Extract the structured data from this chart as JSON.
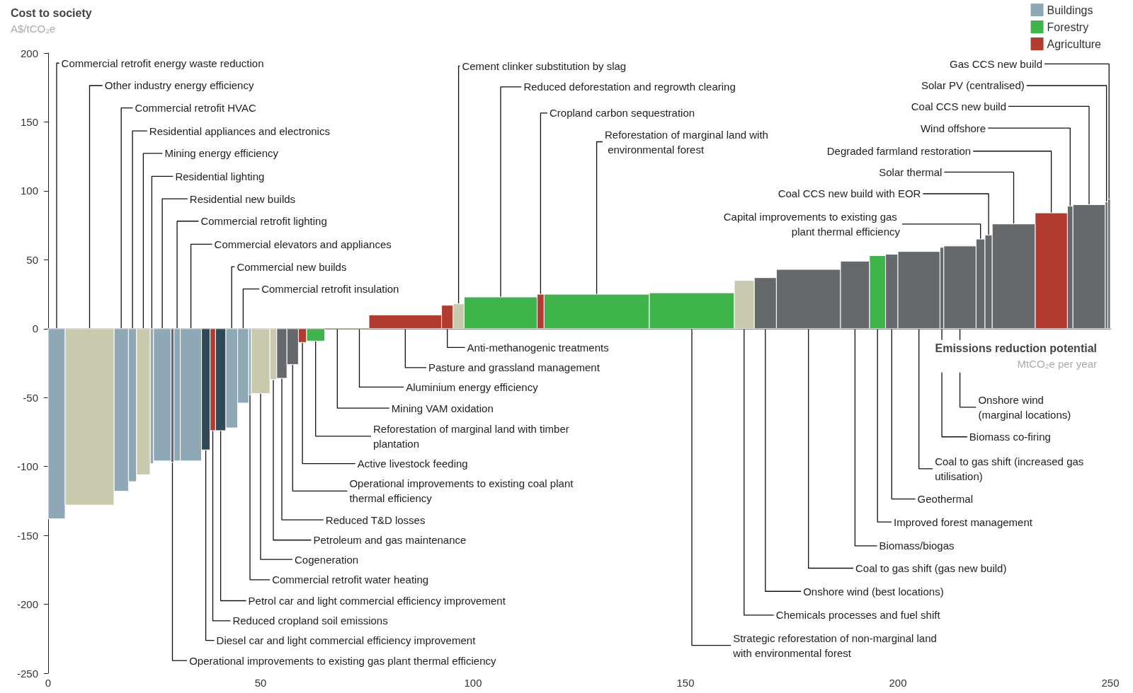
{
  "chart_data": {
    "type": "histogram",
    "ylabel": "Cost to society\nA$/tCO₂e",
    "xlabel": "Emissions reduction potential\nMtCO₂e per year",
    "bins": [
      0,
      4,
      15.5,
      18.9,
      20.8,
      24,
      24.8,
      28.9,
      29.6,
      31.1,
      36.1,
      38.1,
      39.4,
      41.8,
      44.6,
      47.2,
      47.8,
      52.2,
      53.8,
      56.2,
      58.9,
      60.8,
      65.1,
      71,
      75.5,
      92.6,
      95.3,
      97.9,
      115.1,
      116.7,
      141.5,
      161.5,
      166.2,
      171.4,
      186.5,
      193.3,
      197.1,
      200,
      209.9,
      210.8,
      218.4,
      220.5,
      222.2,
      232.3,
      239.9,
      241.2,
      248.8,
      249.4,
      250
    ],
    "series": [
      {
        "name": "Buildings",
        "color": "#8fa8b6",
        "values": [
          -138,
          null,
          -118,
          -111,
          null,
          -98,
          -96,
          null,
          -96,
          -96,
          null,
          null,
          null,
          -72,
          -54,
          -48,
          null,
          null,
          null,
          null,
          null,
          null,
          null,
          null,
          null,
          null,
          null,
          null,
          null,
          null,
          null,
          null,
          null,
          null,
          null,
          null,
          null,
          null,
          null,
          null,
          null,
          null,
          null,
          null,
          null,
          null,
          null,
          null
        ]
      },
      {
        "name": "Forestry",
        "color": "#3db54a",
        "values": [
          null,
          null,
          null,
          null,
          null,
          null,
          null,
          null,
          null,
          null,
          null,
          null,
          null,
          null,
          null,
          null,
          null,
          null,
          null,
          null,
          null,
          -9,
          null,
          null,
          null,
          null,
          null,
          23,
          null,
          25,
          26,
          null,
          null,
          null,
          null,
          53,
          null,
          null,
          null,
          null,
          null,
          null,
          null,
          null,
          null,
          null,
          null,
          null
        ]
      },
      {
        "name": "Agriculture",
        "color": "#b23b2f",
        "values": [
          null,
          null,
          null,
          null,
          null,
          null,
          null,
          null,
          null,
          null,
          null,
          -74,
          null,
          null,
          null,
          null,
          null,
          null,
          null,
          null,
          -10,
          null,
          null,
          null,
          10,
          17,
          null,
          null,
          25,
          null,
          null,
          null,
          null,
          null,
          null,
          null,
          null,
          null,
          null,
          null,
          null,
          null,
          null,
          84,
          null,
          null,
          null,
          null
        ]
      },
      {
        "color": "#c9c9ad",
        "values": [
          null,
          -128,
          null,
          null,
          -106,
          null,
          null,
          null,
          null,
          null,
          null,
          null,
          null,
          null,
          null,
          null,
          -47,
          -37,
          null,
          null,
          null,
          null,
          0,
          0,
          null,
          null,
          18,
          null,
          null,
          null,
          null,
          35,
          null,
          null,
          null,
          null,
          null,
          null,
          null,
          null,
          null,
          null,
          null,
          null,
          null,
          null,
          null,
          null
        ]
      },
      {
        "color": "#66696c",
        "values": [
          null,
          null,
          null,
          null,
          null,
          null,
          null,
          -97,
          null,
          null,
          null,
          null,
          null,
          null,
          null,
          null,
          null,
          null,
          -36,
          -26,
          null,
          null,
          null,
          null,
          null,
          null,
          null,
          null,
          null,
          null,
          null,
          null,
          37,
          43,
          49,
          null,
          54,
          56,
          59,
          60,
          65,
          68,
          76,
          null,
          89,
          90,
          92,
          94
        ]
      },
      {
        "color": "#2e4a58",
        "values": [
          null,
          null,
          null,
          null,
          null,
          null,
          null,
          null,
          null,
          null,
          -88,
          null,
          -74,
          null,
          null,
          null,
          null,
          null,
          null,
          null,
          null,
          null,
          null,
          null,
          null,
          null,
          null,
          null,
          null,
          null,
          null,
          null,
          null,
          null,
          null,
          null,
          null,
          null,
          null,
          null,
          null,
          null,
          null,
          null,
          null,
          null,
          null,
          null
        ]
      }
    ],
    "xlim": [
      0,
      250
    ],
    "ylim": [
      -250,
      200
    ],
    "xticks": [
      0,
      50,
      100,
      150,
      200,
      250
    ],
    "yticks": [
      -250,
      -200,
      -150,
      -100,
      -50,
      0,
      50,
      100,
      150,
      200
    ],
    "legend": "top right",
    "annotations": [
      {
        "text": "Commercial retrofit energy waste reduction",
        "x": 2,
        "y": 0
      },
      {
        "text": "Other industry energy efficiency",
        "x": 9.75,
        "y": 0
      },
      {
        "text": "Commercial retrofit HVAC",
        "x": 17.2,
        "y": 0
      },
      {
        "text": "Residential appliances and electronics",
        "x": 19.85,
        "y": 0
      },
      {
        "text": "Mining energy efficiency",
        "x": 22.4,
        "y": 0
      },
      {
        "text": "Residential lighting",
        "x": 24.4,
        "y": 0
      },
      {
        "text": "Residential new builds",
        "x": 26.85,
        "y": 0
      },
      {
        "text": "Operational improvements to existing gas plant thermal efficiency",
        "x": 29.25,
        "y": -97
      },
      {
        "text": "Commercial retrofit lighting",
        "x": 30.35,
        "y": 0
      },
      {
        "text": "Commercial elevators and appliances",
        "x": 33.6,
        "y": 0
      },
      {
        "text": "Diesel car and light commercial efficiency improvement",
        "x": 37.1,
        "y": -88
      },
      {
        "text": "Reduced cropland soil emissions",
        "x": 38.75,
        "y": -74
      },
      {
        "text": "Petrol car and light commercial efficiency improvement",
        "x": 40.6,
        "y": -74
      },
      {
        "text": "Commercial new builds",
        "x": 43.2,
        "y": 0
      },
      {
        "text": "Commercial retrofit insulation",
        "x": 45.9,
        "y": 0
      },
      {
        "text": "Commercial retrofit water heating",
        "x": 47.5,
        "y": -48
      },
      {
        "text": "Cogeneration",
        "x": 50,
        "y": -47
      },
      {
        "text": "Petroleum and gas maintenance",
        "x": 53,
        "y": -37
      },
      {
        "text": "Reduced T&D losses",
        "x": 55,
        "y": -36
      },
      {
        "text": "Operational improvements to existing coal plant thermal efficiency",
        "x": 57.55,
        "y": -26
      },
      {
        "text": "Active livestock feeding",
        "x": 59.85,
        "y": -10
      },
      {
        "text": "Reforestation of marginal land with timber plantation",
        "x": 62.95,
        "y": -9
      },
      {
        "text": "Mining VAM oxidation",
        "x": 68.05,
        "y": 0
      },
      {
        "text": "Aluminium energy efficiency",
        "x": 73.25,
        "y": 0
      },
      {
        "text": "Pasture and grassland management",
        "x": 84.05,
        "y": 0
      },
      {
        "text": "Anti-methanogenic treatments",
        "x": 93.95,
        "y": 0
      },
      {
        "text": "Cement clinker substitution by slag",
        "x": 96.6,
        "y": 18
      },
      {
        "text": "Reduced deforestation and regrowth clearing",
        "x": 106.5,
        "y": 23
      },
      {
        "text": "Cropland carbon sequestration",
        "x": 115.9,
        "y": 25
      },
      {
        "text": "Reforestation of marginal land with environmental forest",
        "x": 129.1,
        "y": 25
      },
      {
        "text": "Strategic reforestation of non-marginal land with environmental forest",
        "x": 151.5,
        "y": 0
      },
      {
        "text": "Chemicals processes and fuel shift",
        "x": 163.8,
        "y": 0
      },
      {
        "text": "Onshore wind (best locations)",
        "x": 168.8,
        "y": 0
      },
      {
        "text": "Coal to gas shift (gas new build)",
        "x": 178.95,
        "y": 0
      },
      {
        "text": "Biomass/biogas",
        "x": 189.9,
        "y": 0
      },
      {
        "text": "Improved forest management",
        "x": 195.2,
        "y": 0
      },
      {
        "text": "Geothermal",
        "x": 198.55,
        "y": 0
      },
      {
        "text": "Coal to gas shift (increased gas utilisation)",
        "x": 204.95,
        "y": 0
      },
      {
        "text": "Biomass co-firing",
        "x": 210.35,
        "y": 0
      },
      {
        "text": "Onshore wind (marginal locations)",
        "x": 214.6,
        "y": 0
      },
      {
        "text": "Capital improvements to existing gas plant thermal efficiency",
        "x": 219.45,
        "y": 65
      },
      {
        "text": "Coal CCS new build with EOR",
        "x": 221.35,
        "y": 68
      },
      {
        "text": "Solar thermal",
        "x": 227.25,
        "y": 76
      },
      {
        "text": "Degraded farmland restoration",
        "x": 236.1,
        "y": 84
      },
      {
        "text": "Wind offshore",
        "x": 240.55,
        "y": 89
      },
      {
        "text": "Coal CCS new build",
        "x": 245,
        "y": 90
      },
      {
        "text": "Solar PV (centralised)",
        "x": 249.1,
        "y": 92
      },
      {
        "text": "Gas CCS new build",
        "x": 249.7,
        "y": 94
      }
    ]
  }
}
